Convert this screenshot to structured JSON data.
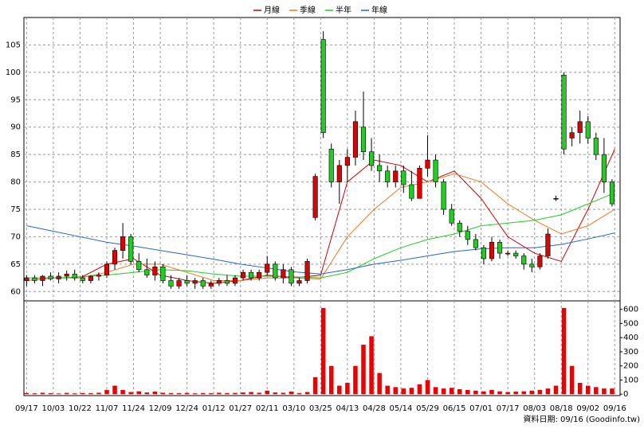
{
  "chart_data": {
    "type": "candlestick",
    "legend_position": "top",
    "footer": "資料日期: 09/16  (Goodinfo.tw)",
    "xlim": [
      -1,
      222
    ],
    "xticks": [
      {
        "value": 0,
        "label": "09/17"
      },
      {
        "value": 10,
        "label": "10/03"
      },
      {
        "value": 20,
        "label": "10/22"
      },
      {
        "value": 30,
        "label": "11/07"
      },
      {
        "value": 40,
        "label": "11/24"
      },
      {
        "value": 50,
        "label": "12/09"
      },
      {
        "value": 60,
        "label": "12/24"
      },
      {
        "value": 70,
        "label": "01/12"
      },
      {
        "value": 80,
        "label": "01/27"
      },
      {
        "value": 90,
        "label": "02/11"
      },
      {
        "value": 100,
        "label": "03/10"
      },
      {
        "value": 110,
        "label": "03/25"
      },
      {
        "value": 120,
        "label": "04/13"
      },
      {
        "value": 130,
        "label": "04/28"
      },
      {
        "value": 140,
        "label": "05/14"
      },
      {
        "value": 150,
        "label": "05/29"
      },
      {
        "value": 160,
        "label": "06/15"
      },
      {
        "value": 170,
        "label": "07/01"
      },
      {
        "value": 180,
        "label": "07/17"
      },
      {
        "value": 190,
        "label": "08/03"
      },
      {
        "value": 200,
        "label": "08/18"
      },
      {
        "value": 210,
        "label": "09/02"
      },
      {
        "value": 220,
        "label": "09/16"
      }
    ],
    "ylim": [
      58.3,
      110
    ],
    "yticks": [
      60,
      65,
      70,
      75,
      80,
      85,
      90,
      95,
      100,
      105
    ],
    "grid": true,
    "up_color": "#e00000",
    "down_color": "#22cc22",
    "candles": {
      "x": [
        0,
        3,
        6,
        9,
        12,
        15,
        18,
        21,
        24,
        27,
        30,
        33,
        36,
        39,
        42,
        45,
        48,
        51,
        54,
        57,
        60,
        63,
        66,
        69,
        72,
        75,
        78,
        81,
        84,
        87,
        90,
        93,
        96,
        99,
        102,
        105,
        108,
        111,
        114,
        117,
        120,
        123,
        126,
        129,
        132,
        135,
        138,
        141,
        144,
        147,
        150,
        153,
        156,
        159,
        162,
        165,
        168,
        171,
        174,
        177,
        180,
        183,
        186,
        189,
        192,
        195,
        198,
        201,
        204,
        207,
        210,
        213,
        216,
        219
      ],
      "open": [
        62,
        62.5,
        62,
        62.8,
        62.3,
        62.8,
        63.2,
        62.5,
        62,
        62.8,
        63,
        65,
        67.5,
        70,
        65.5,
        64,
        63,
        64.5,
        62,
        61,
        62,
        61.5,
        62,
        61,
        61.5,
        62,
        61.5,
        62.5,
        63.5,
        62.5,
        63.5,
        65,
        62.5,
        64,
        61.5,
        62,
        73.5,
        106,
        86,
        80,
        83,
        84.5,
        90,
        85.5,
        83,
        82,
        80,
        82,
        79.5,
        77,
        82.5,
        84,
        80,
        75,
        72.5,
        71,
        69.5,
        68,
        66,
        69,
        67,
        67,
        66.5,
        65,
        64.5,
        66.5,
        77,
        99.5,
        88,
        89,
        91,
        88,
        85,
        80
      ],
      "high": [
        63,
        63,
        63,
        63.5,
        63.5,
        63.8,
        64,
        63,
        63,
        63.5,
        65.5,
        68,
        72.5,
        70.5,
        67,
        66,
        65.5,
        65,
        63,
        62.5,
        63,
        62.5,
        62.5,
        62,
        62.5,
        63,
        63,
        64,
        64,
        64,
        66.5,
        65.5,
        65,
        64.5,
        62.5,
        66,
        81.5,
        107.5,
        87,
        84,
        86,
        93,
        96.5,
        88,
        85,
        83,
        83,
        83,
        82,
        83,
        88.5,
        85,
        80.5,
        76,
        73,
        72,
        70.5,
        68.5,
        70,
        69.5,
        67.5,
        67.5,
        67,
        66,
        67,
        71.5,
        77.5,
        100,
        90,
        93,
        92,
        89,
        88,
        80.5
      ],
      "low": [
        61,
        61.5,
        61,
        62,
        61.5,
        62,
        62,
        61.5,
        61.5,
        62,
        62.5,
        64,
        66,
        65,
        63.5,
        62.5,
        62,
        61.5,
        60.5,
        60.5,
        61,
        60.5,
        60.5,
        60.5,
        61,
        61,
        61,
        62,
        62,
        62,
        63,
        62,
        61.5,
        61,
        61,
        61.5,
        73,
        88,
        79,
        76,
        80,
        83,
        84,
        82,
        80,
        79,
        79,
        78,
        76.5,
        77,
        81,
        79,
        74,
        72,
        70,
        68.5,
        67.5,
        65,
        65.5,
        66,
        66.5,
        66,
        64,
        63.5,
        64,
        66,
        76.5,
        85,
        86.5,
        87,
        87,
        84,
        78,
        75.5
      ],
      "close": [
        62.5,
        62,
        62.8,
        62.3,
        62.8,
        63.2,
        62.5,
        62,
        62.8,
        63,
        65,
        67.5,
        70,
        65.5,
        64,
        63,
        64.5,
        62,
        61,
        62,
        61.5,
        62,
        61,
        61.5,
        62,
        61.5,
        62.5,
        63.5,
        62.5,
        63.5,
        65,
        62.5,
        64,
        61.5,
        62,
        65.5,
        81,
        89,
        80,
        83,
        84.5,
        91,
        85.5,
        83,
        82,
        80,
        82,
        79.5,
        77,
        82.5,
        84,
        80,
        75,
        72.5,
        71,
        69.5,
        68,
        66,
        69,
        67,
        67,
        66.5,
        65,
        64.5,
        66.5,
        70.5,
        77,
        86,
        89,
        91,
        88,
        85,
        80,
        76
      ]
    },
    "moving_averages": [
      {
        "name": "月線",
        "color": "#cc0000",
        "x": [
          0,
          10,
          20,
          30,
          40,
          50,
          60,
          70,
          80,
          90,
          100,
          110,
          120,
          130,
          140,
          150,
          160,
          170,
          180,
          190,
          200,
          210,
          220
        ],
        "values": [
          62,
          62.5,
          62.5,
          65,
          66,
          63,
          62,
          61.5,
          62,
          63,
          62.5,
          63,
          80,
          84,
          83,
          80,
          82,
          77,
          70,
          67,
          65.5,
          75,
          86
        ]
      },
      {
        "name": "季線",
        "color": "#ee7722",
        "x": [
          0,
          10,
          20,
          30,
          40,
          50,
          60,
          70,
          80,
          90,
          100,
          110,
          120,
          130,
          140,
          150,
          160,
          170,
          180,
          190,
          200,
          210,
          220
        ],
        "values": [
          62,
          62.5,
          62.5,
          63.5,
          65,
          65,
          63.5,
          62,
          62,
          62.5,
          62.5,
          62.3,
          70,
          75,
          79,
          80,
          81.5,
          80,
          76,
          73,
          70.5,
          72,
          75
        ]
      },
      {
        "name": "半年",
        "color": "#22cc22",
        "x": [
          0,
          10,
          20,
          30,
          40,
          50,
          60,
          70,
          80,
          90,
          100,
          110,
          120,
          130,
          140,
          150,
          160,
          170,
          180,
          190,
          200,
          210,
          220
        ],
        "values": [
          62.5,
          62.5,
          62.7,
          63,
          63.5,
          64,
          63.8,
          63.2,
          62.8,
          62.8,
          62.7,
          62.5,
          63.5,
          66,
          68,
          69.5,
          70.5,
          72,
          72.5,
          73,
          74,
          76,
          78
        ]
      },
      {
        "name": "年線",
        "color": "#2266cc",
        "x": [
          0,
          10,
          20,
          30,
          40,
          50,
          60,
          70,
          80,
          90,
          100,
          110,
          120,
          130,
          140,
          150,
          160,
          170,
          180,
          190,
          200,
          210,
          220
        ],
        "values": [
          72,
          71,
          70,
          69,
          68.3,
          67.5,
          66.7,
          65.9,
          65,
          64.3,
          63.6,
          63.2,
          64,
          65,
          65.7,
          66.5,
          67.3,
          67.8,
          68,
          68,
          68.6,
          69.6,
          70.7
        ]
      }
    ],
    "volume": {
      "color": "#ee0000",
      "y2lim": [
        -10,
        660
      ],
      "y2ticks": [
        0,
        100,
        200,
        300,
        400,
        500,
        600
      ],
      "values": [
        8,
        6,
        10,
        7,
        5,
        9,
        6,
        8,
        7,
        10,
        30,
        60,
        30,
        15,
        20,
        12,
        18,
        10,
        8,
        7,
        9,
        6,
        8,
        7,
        10,
        8,
        9,
        12,
        15,
        10,
        25,
        12,
        10,
        18,
        8,
        15,
        120,
        610,
        200,
        60,
        80,
        200,
        350,
        410,
        150,
        60,
        50,
        40,
        45,
        70,
        100,
        50,
        40,
        45,
        35,
        30,
        25,
        20,
        30,
        20,
        15,
        18,
        20,
        25,
        30,
        40,
        60,
        610,
        200,
        80,
        60,
        50,
        40,
        40
      ]
    }
  }
}
